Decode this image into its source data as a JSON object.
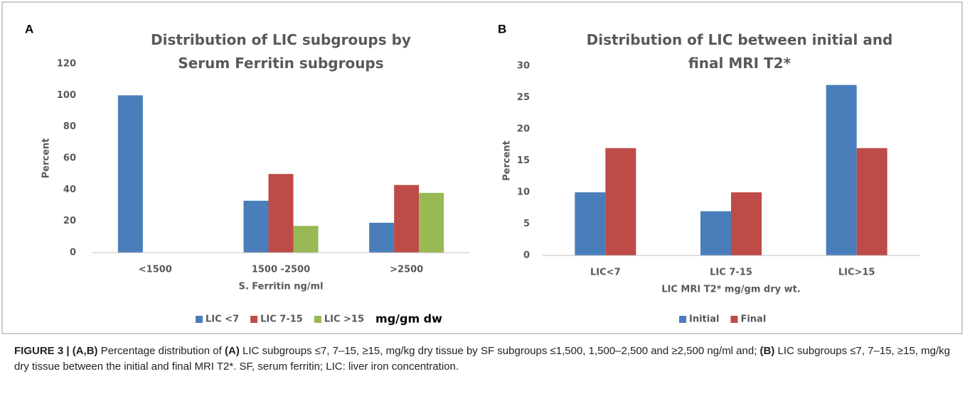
{
  "chart_data": [
    {
      "type": "bar",
      "panel": "A",
      "title": "Distribution of LIC subgroups by Serum Ferritin subgroups",
      "categories": [
        "<1500",
        "1500 -2500",
        ">2500"
      ],
      "series": [
        {
          "name": "LIC <7",
          "color": "#4a7ebb",
          "values": [
            100,
            33,
            19
          ]
        },
        {
          "name": "LIC 7-15",
          "color": "#be4b48",
          "values": [
            0,
            50,
            43
          ]
        },
        {
          "name": "LIC >15",
          "color": "#98b954",
          "values": [
            0,
            17,
            38
          ]
        }
      ],
      "legend_note": "mg/gm dw",
      "xlabel": "S. Ferritin ng/ml",
      "ylabel": "Percent",
      "ylim": [
        0,
        120
      ],
      "yticks": [
        0,
        20,
        40,
        60,
        80,
        100,
        120
      ],
      "grid": false,
      "legend": "bottom"
    },
    {
      "type": "bar",
      "panel": "B",
      "title": "Distribution of LIC between initial and final MRI T2*",
      "categories": [
        "LIC<7",
        "LIC 7-15",
        "LIC>15"
      ],
      "series": [
        {
          "name": "Initial",
          "color": "#4a7ebb",
          "values": [
            10,
            7,
            27
          ]
        },
        {
          "name": "Final",
          "color": "#be4b48",
          "values": [
            17,
            10,
            17
          ]
        }
      ],
      "xlabel": "LIC MRI T2* mg/gm dry wt.",
      "ylabel": "Percent",
      "ylim": [
        0,
        30
      ],
      "yticks": [
        0,
        5,
        10,
        15,
        20,
        25,
        30
      ],
      "grid": false,
      "legend": "bottom"
    }
  ],
  "caption": [
    {
      "text": "FIGURE 3 | (A,B)",
      "bold": true
    },
    {
      "text": " Percentage distribution of ",
      "bold": false
    },
    {
      "text": "(A)",
      "bold": true
    },
    {
      "text": " LIC subgroups ≤7, 7–15, ≥15, mg/kg dry tissue by SF subgroups ≤1,500, 1,500–2,500 and ≥2,500 ng/ml and; ",
      "bold": false
    },
    {
      "text": "(B)",
      "bold": true
    },
    {
      "text": " LIC subgroups ≤7, 7–15, ≥15, mg/kg dry tissue between the initial and final MRI T2*. SF, serum ferritin; LIC: liver iron concentration.",
      "bold": false
    }
  ]
}
